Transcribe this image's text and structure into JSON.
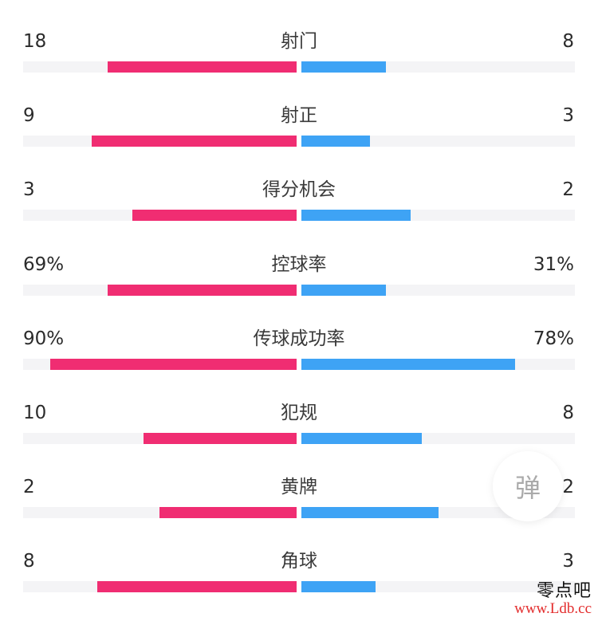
{
  "colors": {
    "home_bar": "#f02d72",
    "away_bar": "#3ea3f5",
    "track": "#f4f4f6"
  },
  "stats": [
    {
      "label": "射门",
      "home": "18",
      "away": "8",
      "home_ratio": 0.69,
      "away_ratio": 0.31
    },
    {
      "label": "射正",
      "home": "9",
      "away": "3",
      "home_ratio": 0.75,
      "away_ratio": 0.25
    },
    {
      "label": "得分机会",
      "home": "3",
      "away": "2",
      "home_ratio": 0.6,
      "away_ratio": 0.4
    },
    {
      "label": "控球率",
      "home": "69%",
      "away": "31%",
      "home_ratio": 0.69,
      "away_ratio": 0.31
    },
    {
      "label": "传球成功率",
      "home": "90%",
      "away": "78%",
      "home_ratio": 0.9,
      "away_ratio": 0.78
    },
    {
      "label": "犯规",
      "home": "10",
      "away": "8",
      "home_ratio": 0.56,
      "away_ratio": 0.44
    },
    {
      "label": "黄牌",
      "home": "2",
      "away": "2",
      "home_ratio": 0.5,
      "away_ratio": 0.5
    },
    {
      "label": "角球",
      "home": "8",
      "away": "3",
      "home_ratio": 0.73,
      "away_ratio": 0.27
    }
  ],
  "danmu_button": {
    "label": "弹"
  },
  "watermark": {
    "text": "零点吧",
    "url": "www.Ldb.cc"
  }
}
